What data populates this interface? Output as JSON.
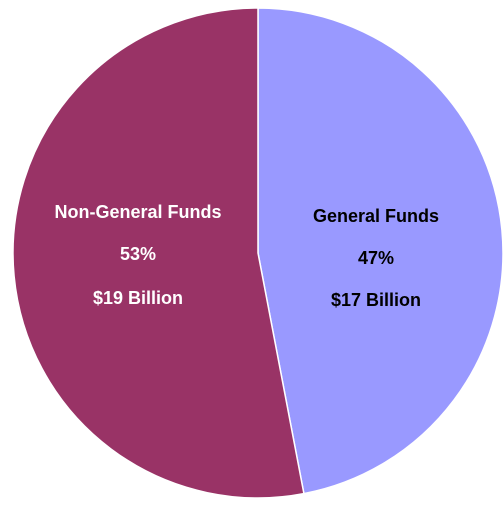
{
  "chart_data": {
    "type": "pie",
    "title": "",
    "slices": [
      {
        "label": "General Funds",
        "percent_label": "47%",
        "amount_label": "$17 Billion",
        "value": 47,
        "color": "#9999ff",
        "text_color": "#000000"
      },
      {
        "label": "Non-General Funds",
        "percent_label": "53%",
        "amount_label": "$19 Billion",
        "value": 53,
        "color": "#993366",
        "text_color": "#ffffff"
      }
    ],
    "start_angle_deg": 0,
    "direction": "clockwise",
    "legend": "none"
  }
}
